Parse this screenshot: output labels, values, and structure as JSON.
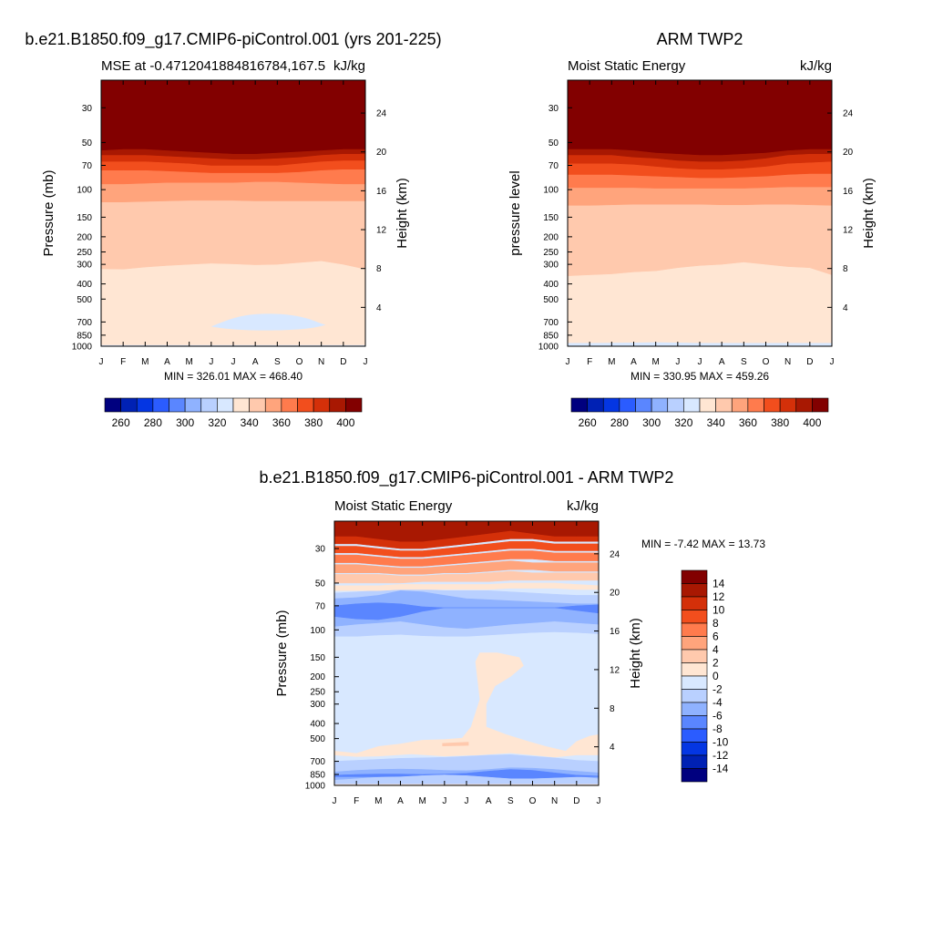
{
  "chart_data": [
    {
      "type": "heatmap",
      "title": "b.e21.B1850.f09_g17.CMIP6-piControl.001 (yrs 201-225)",
      "subtitle_left": "MSE at -0.4712041884816784,167.5",
      "subtitle_right": "kJ/kg",
      "ylabel": "Pressure (mb)",
      "ylabel_right": "Height (km)",
      "x_ticks": [
        "J",
        "F",
        "M",
        "A",
        "M",
        "J",
        "J",
        "A",
        "S",
        "O",
        "N",
        "D",
        "J"
      ],
      "y_ticks": [
        "30",
        "50",
        "70",
        "100",
        "150",
        "200",
        "250",
        "300",
        "400",
        "500",
        "700",
        "850",
        "1000"
      ],
      "y_ticks_right": [
        "24",
        "20",
        "16",
        "12",
        "8",
        "4"
      ],
      "ylim": [
        1000,
        20
      ],
      "stats": "MIN = 326.01 MAX = 468.40",
      "levels": [
        260,
        270,
        280,
        290,
        300,
        310,
        320,
        330,
        340,
        350,
        360,
        370,
        380,
        390,
        400
      ],
      "colorbar_labels": [
        "260",
        "280",
        "300",
        "320",
        "340",
        "360",
        "380",
        "400"
      ],
      "colors": [
        "#00007f",
        "#0021b4",
        "#0436e3",
        "#2b5cff",
        "#5a86ff",
        "#8fb2ff",
        "#b9d0ff",
        "#d8e8ff",
        "#ffe6d3",
        "#ffc9ad",
        "#ffa47c",
        "#ff7b4d",
        "#f24e1d",
        "#d43009",
        "#a81802",
        "#820000"
      ],
      "boundaries": [
        {
          "level": 330,
          "p": [
            980,
            980,
            980,
            980,
            980,
            980,
            980,
            980,
            980,
            980,
            980,
            980,
            980
          ]
        },
        {
          "level": 340,
          "p": [
            320,
            322,
            312,
            305,
            300,
            295,
            298,
            302,
            300,
            292,
            285,
            300,
            322
          ]
        },
        {
          "level": 350,
          "p": [
            120,
            120,
            119,
            118,
            117,
            117,
            117,
            118,
            118,
            118,
            118,
            118,
            118
          ]
        },
        {
          "level": 360,
          "p": [
            92,
            92,
            91,
            90,
            90,
            90,
            90,
            89,
            89,
            90,
            91,
            92,
            92
          ]
        },
        {
          "level": 370,
          "p": [
            75,
            75,
            75,
            76,
            77,
            78,
            78,
            78,
            78,
            77,
            75,
            74,
            74
          ]
        },
        {
          "level": 380,
          "p": [
            66,
            66,
            66,
            67,
            68,
            70,
            70,
            70,
            70,
            68,
            66,
            65,
            65
          ]
        },
        {
          "level": 390,
          "p": [
            60,
            60,
            60,
            61,
            62,
            63,
            64,
            64,
            63,
            62,
            60,
            59,
            59
          ]
        },
        {
          "level": 400,
          "p": [
            56,
            55,
            55,
            56,
            57,
            58,
            59,
            59,
            58,
            57,
            56,
            55,
            55
          ]
        }
      ],
      "blob": {
        "level": 320,
        "p_min": 620,
        "p_max": 790,
        "months": [
          5.0,
          10.2
        ]
      }
    },
    {
      "type": "heatmap",
      "title": "ARM TWP2",
      "subtitle_left": "Moist Static Energy",
      "subtitle_right": "kJ/kg",
      "ylabel": "pressure level",
      "ylabel_right": "Height (km)",
      "x_ticks": [
        "J",
        "F",
        "M",
        "A",
        "M",
        "J",
        "J",
        "A",
        "S",
        "O",
        "N",
        "D",
        "J"
      ],
      "y_ticks": [
        "30",
        "50",
        "70",
        "100",
        "150",
        "200",
        "250",
        "300",
        "400",
        "500",
        "700",
        "850",
        "1000"
      ],
      "y_ticks_right": [
        "24",
        "20",
        "16",
        "12",
        "8",
        "4"
      ],
      "ylim": [
        1000,
        20
      ],
      "stats": "MIN = 330.95 MAX = 459.26",
      "levels": [
        260,
        270,
        280,
        290,
        300,
        310,
        320,
        330,
        340,
        350,
        360,
        370,
        380,
        390,
        400
      ],
      "colorbar_labels": [
        "260",
        "280",
        "300",
        "320",
        "340",
        "360",
        "380",
        "400"
      ],
      "colors": [
        "#00007f",
        "#0021b4",
        "#0436e3",
        "#2b5cff",
        "#5a86ff",
        "#8fb2ff",
        "#b9d0ff",
        "#d8e8ff",
        "#ffe6d3",
        "#ffc9ad",
        "#ffa47c",
        "#ff7b4d",
        "#f24e1d",
        "#d43009",
        "#a81802",
        "#820000"
      ],
      "boundaries": [
        {
          "level": 330,
          "p": [
            950,
            950,
            948,
            945,
            940,
            945,
            950,
            950,
            950,
            950,
            950,
            950,
            950
          ]
        },
        {
          "level": 340,
          "p": [
            355,
            350,
            345,
            335,
            330,
            315,
            305,
            300,
            290,
            300,
            310,
            315,
            350
          ]
        },
        {
          "level": 350,
          "p": [
            126,
            126,
            125,
            124,
            124,
            124,
            124,
            125,
            125,
            124,
            124,
            125,
            126
          ]
        },
        {
          "level": 360,
          "p": [
            97,
            97,
            97,
            97,
            98,
            98,
            98,
            98,
            98,
            97,
            96,
            96,
            96
          ]
        },
        {
          "level": 370,
          "p": [
            80,
            80,
            80,
            81,
            82,
            83,
            84,
            84,
            83,
            82,
            80,
            79,
            79
          ]
        },
        {
          "level": 380,
          "p": [
            68,
            68,
            68,
            69,
            71,
            73,
            74,
            74,
            73,
            71,
            68,
            67,
            66
          ]
        },
        {
          "level": 390,
          "p": [
            60,
            60,
            60,
            62,
            63,
            65,
            66,
            66,
            65,
            63,
            60,
            59,
            59
          ]
        },
        {
          "level": 400,
          "p": [
            55,
            55,
            55,
            56,
            58,
            59,
            60,
            60,
            59,
            58,
            56,
            55,
            55
          ]
        }
      ]
    },
    {
      "type": "heatmap",
      "title": "b.e21.B1850.f09_g17.CMIP6-piControl.001 - ARM TWP2",
      "subtitle_left": "Moist Static Energy",
      "subtitle_right": "kJ/kg",
      "ylabel": "Pressure (mb)",
      "ylabel_right": "Height (km)",
      "x_ticks": [
        "J",
        "F",
        "M",
        "A",
        "M",
        "J",
        "J",
        "A",
        "S",
        "O",
        "N",
        "D",
        "J"
      ],
      "y_ticks": [
        "30",
        "50",
        "70",
        "100",
        "150",
        "200",
        "250",
        "300",
        "400",
        "500",
        "700",
        "850",
        "1000"
      ],
      "y_ticks_right": [
        "24",
        "20",
        "16",
        "12",
        "8",
        "4"
      ],
      "ylim": [
        1000,
        20
      ],
      "stats": "MIN =  -7.42 MAX =  13.73",
      "levels": [
        -14,
        -12,
        -10,
        -8,
        -6,
        -4,
        -2,
        0,
        2,
        4,
        6,
        8,
        10,
        12,
        14
      ],
      "colorbar_labels": [
        "14",
        "12",
        "10",
        "8",
        "6",
        "4",
        "2",
        "0",
        "-2",
        "-4",
        "-6",
        "-8",
        "-10",
        "-12",
        "-14"
      ],
      "colors": [
        "#00007f",
        "#0021b4",
        "#0436e3",
        "#2b5cff",
        "#5a86ff",
        "#8fb2ff",
        "#b9d0ff",
        "#d8e8ff",
        "#ffe6d3",
        "#ffc9ad",
        "#ffa47c",
        "#ff7b4d",
        "#f24e1d",
        "#d43009",
        "#a81802",
        "#820000"
      ],
      "background_level": -1,
      "bands": [
        {
          "level": -3,
          "top": [
            110,
            110,
            108,
            107,
            109,
            110,
            110,
            108,
            106,
            104,
            103,
            104,
            106
          ],
          "bottom": [
            58,
            57,
            56,
            55,
            55,
            56,
            56,
            56,
            57,
            58,
            59,
            60,
            60
          ]
        },
        {
          "level": -5,
          "top": [
            95,
            92,
            90,
            88,
            92,
            96,
            98,
            95,
            92,
            90,
            88,
            90,
            92
          ],
          "bottom": [
            63,
            62,
            60,
            56,
            57,
            60,
            63,
            64,
            65,
            66,
            67,
            68,
            68
          ]
        },
        {
          "level": -7,
          "top": [
            82,
            85,
            86,
            82,
            76,
            72,
            72,
            72,
            72,
            72,
            72,
            75,
            78
          ],
          "bottom": [
            70,
            68,
            67,
            68,
            71,
            72,
            72,
            72,
            72,
            72,
            72,
            70,
            69
          ]
        },
        {
          "level": 1,
          "top": [
            56,
            56,
            56,
            55,
            55,
            55,
            55,
            55,
            54,
            54,
            54,
            55,
            55
          ],
          "bottom": [
            52,
            52,
            52,
            51,
            51,
            51,
            51,
            51,
            50,
            50,
            50,
            51,
            52
          ]
        },
        {
          "level": 3,
          "top": [
            50,
            50,
            50,
            50,
            49,
            49,
            49,
            49,
            48,
            48,
            48,
            48,
            48
          ],
          "bottom": [
            44,
            44,
            44,
            45,
            45,
            44,
            44,
            43,
            42,
            43,
            43,
            43,
            43
          ]
        },
        {
          "level": 5,
          "top": [
            43,
            43,
            43,
            44,
            44,
            43,
            43,
            42,
            41,
            41,
            42,
            42,
            42
          ],
          "bottom": [
            38,
            38,
            39,
            40,
            40,
            39,
            38,
            37,
            36,
            37,
            37,
            37,
            37
          ]
        },
        {
          "level": 7,
          "top": [
            37,
            37,
            38,
            39,
            39,
            38,
            37,
            36,
            35,
            35,
            36,
            36,
            36
          ],
          "bottom": [
            33,
            33,
            34,
            35,
            35,
            34,
            33,
            32,
            31,
            31,
            32,
            32,
            32
          ]
        },
        {
          "level": 9,
          "top": [
            32,
            32,
            33,
            34,
            34,
            33,
            32,
            31,
            30,
            30,
            31,
            31,
            31
          ],
          "bottom": [
            29,
            29,
            30,
            31,
            31,
            30,
            29,
            28,
            27,
            27,
            28,
            28,
            28
          ]
        },
        {
          "level": 11,
          "top": [
            28,
            28,
            29,
            30,
            30,
            29,
            28,
            27,
            26,
            26,
            27,
            27,
            27
          ],
          "bottom": [
            20,
            20,
            20,
            20,
            20,
            20,
            20,
            20,
            20,
            20,
            20,
            20,
            20
          ]
        },
        {
          "level": 13,
          "top": [
            25,
            25,
            26,
            27,
            27,
            26,
            25,
            24,
            23,
            24,
            25,
            25,
            25
          ],
          "bottom": [
            20,
            20,
            20,
            20,
            20,
            20,
            20,
            20,
            20,
            20,
            20,
            20,
            20
          ]
        },
        {
          "level": -3,
          "top": [
            1000,
            1000,
            1000,
            1000,
            1000,
            1000,
            1000,
            1000,
            1000,
            1000,
            1000,
            1000,
            1000
          ],
          "bottom": [
            700,
            690,
            680,
            670,
            665,
            660,
            650,
            640,
            635,
            650,
            665,
            690,
            700
          ]
        },
        {
          "level": -5,
          "top": [
            920,
            900,
            880,
            860,
            850,
            840,
            830,
            820,
            810,
            820,
            840,
            870,
            900
          ],
          "bottom": [
            820,
            800,
            790,
            785,
            790,
            800,
            805,
            790,
            770,
            775,
            790,
            810,
            830
          ]
        },
        {
          "level": -7,
          "top": [
            880,
            880,
            880,
            875,
            860,
            850,
            860,
            880,
            900,
            900,
            890,
            880,
            880
          ],
          "bottom": [
            860,
            850,
            845,
            845,
            850,
            845,
            835,
            810,
            790,
            800,
            830,
            860,
            870
          ]
        },
        {
          "level": 1,
          "top": [
            1000,
            1000,
            1000,
            1000,
            1000,
            1000,
            1000,
            1000,
            1000,
            1000,
            1000,
            1000,
            1000
          ],
          "bottom": [
            985,
            985,
            985,
            985,
            985,
            985,
            985,
            985,
            985,
            985,
            985,
            985,
            985
          ]
        }
      ],
      "patches": [
        {
          "level": 1,
          "points": [
            [
              0,
              600
            ],
            [
              1,
              620
            ],
            [
              2,
              560
            ],
            [
              3,
              540
            ],
            [
              4,
              510
            ],
            [
              5,
              505
            ],
            [
              5.8,
              495
            ],
            [
              6.2,
              420
            ],
            [
              6.6,
              280
            ],
            [
              6.4,
              160
            ],
            [
              6.6,
              140
            ],
            [
              7.4,
              140
            ],
            [
              8.4,
              150
            ],
            [
              8.6,
              170
            ],
            [
              8.0,
              200
            ],
            [
              7.3,
              230
            ],
            [
              6.9,
              300
            ],
            [
              6.9,
              420
            ],
            [
              7.8,
              470
            ],
            [
              8.8,
              520
            ],
            [
              9.6,
              560
            ],
            [
              10.5,
              600
            ],
            [
              11.0,
              520
            ],
            [
              11.6,
              480
            ],
            [
              12.0,
              470
            ],
            [
              12.0,
              640
            ],
            [
              11.0,
              640
            ],
            [
              10.0,
              660
            ],
            [
              9.0,
              640
            ],
            [
              8.0,
              620
            ],
            [
              6.5,
              640
            ],
            [
              5.0,
              650
            ],
            [
              3.5,
              630
            ],
            [
              2.0,
              650
            ],
            [
              1.0,
              655
            ],
            [
              0,
              640
            ]
          ]
        },
        {
          "level": 3,
          "points": [
            [
              4.9,
              535
            ],
            [
              6.1,
              525
            ],
            [
              6.1,
              555
            ],
            [
              4.9,
              560
            ]
          ]
        }
      ]
    }
  ]
}
